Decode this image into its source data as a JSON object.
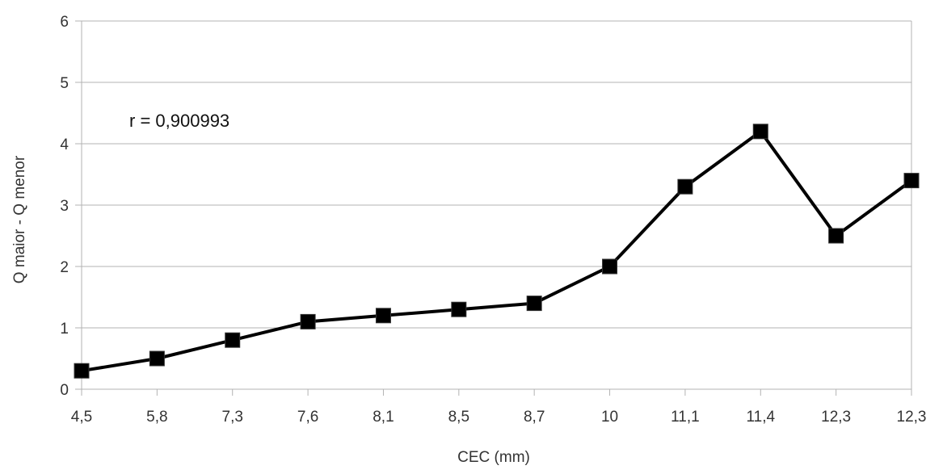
{
  "chart_data": {
    "type": "line",
    "title": "",
    "xlabel": "CEC (mm)",
    "ylabel": "Q maior - Q menor",
    "categories": [
      "4,5",
      "5,8",
      "7,3",
      "7,6",
      "8,1",
      "8,5",
      "8,7",
      "10",
      "11,1",
      "11,4",
      "12,3",
      "12,3"
    ],
    "series": [
      {
        "values": [
          0.3,
          0.5,
          0.8,
          1.1,
          1.2,
          1.3,
          1.4,
          2.0,
          3.3,
          4.2,
          2.5,
          3.4
        ],
        "color": "#000000",
        "marker": "square"
      }
    ],
    "ylim": [
      0,
      6
    ],
    "yticks": [
      0,
      1,
      2,
      3,
      4,
      5,
      6
    ],
    "grid": true,
    "legend": "none",
    "annotation": "r = 0,900993"
  }
}
